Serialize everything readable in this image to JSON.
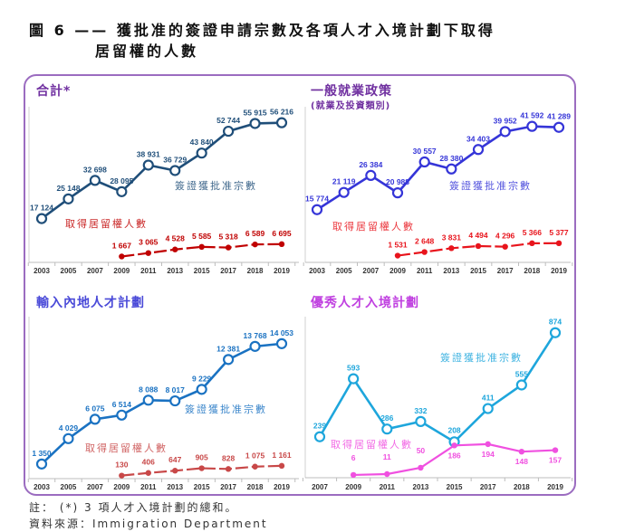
{
  "figure_title_line1": "圖 6 —— 獲批准的簽證申請宗數及各項人才入境計劃下取得",
  "figure_title_line2": "居留權的人數",
  "note": "註： (*) 3 項人才入境計劃的總和。",
  "source": "資料來源：Immigration Department",
  "chart_data": [
    {
      "type": "line",
      "title": "合計*",
      "categories": [
        "2003",
        "2005",
        "2007",
        "2009",
        "2011",
        "2013",
        "2015",
        "2017",
        "2018",
        "2019"
      ],
      "colors": {
        "title": "#7030a0",
        "approved": "#1f4e79",
        "residency": "#c00000"
      },
      "series": [
        {
          "name": "簽證獲批准宗數",
          "values": [
            17124,
            25148,
            32698,
            28095,
            38931,
            36729,
            43840,
            52744,
            55915,
            56216
          ],
          "labels": [
            "17 124",
            "25 148",
            "32 698",
            "28 095",
            "38 931",
            "36 729",
            "43 840",
            "52 744",
            "55 915",
            "56 216"
          ]
        },
        {
          "name": "取得居留權人數",
          "values": [
            null,
            null,
            null,
            1667,
            3065,
            4528,
            5585,
            5318,
            6589,
            6695
          ],
          "labels": [
            "",
            "",
            "",
            "1 667",
            "3 065",
            "4 528",
            "5 585",
            "5 318",
            "6 589",
            "6 695"
          ]
        }
      ]
    },
    {
      "type": "line",
      "title": "一般就業政策",
      "subtitle": "(就業及投資類別)",
      "categories": [
        "2003",
        "2005",
        "2007",
        "2009",
        "2011",
        "2013",
        "2015",
        "2017",
        "2018",
        "2019"
      ],
      "colors": {
        "title": "#7030a0",
        "approved": "#3535d8",
        "residency": "#e8141c"
      },
      "series": [
        {
          "name": "簽證獲批准宗數",
          "values": [
            15774,
            21119,
            26384,
            20988,
            30557,
            28380,
            34403,
            39952,
            41592,
            41289
          ],
          "labels": [
            "15 774",
            "21 119",
            "26 384",
            "20 988",
            "30 557",
            "28 380",
            "34 403",
            "39 952",
            "41 592",
            "41 289"
          ]
        },
        {
          "name": "取得居留權人數",
          "values": [
            null,
            null,
            null,
            1531,
            2648,
            3831,
            4494,
            4296,
            5366,
            5377
          ],
          "labels": [
            "",
            "",
            "",
            "1 531",
            "2 648",
            "3 831",
            "4 494",
            "4 296",
            "5 366",
            "5 377"
          ]
        }
      ]
    },
    {
      "type": "line",
      "title": "輸入內地人才計劃",
      "categories": [
        "2003",
        "2005",
        "2007",
        "2009",
        "2011",
        "2013",
        "2015",
        "2017",
        "2018",
        "2019"
      ],
      "colors": {
        "title": "#4a4ad8",
        "approved": "#1a72c2",
        "residency": "#c84848"
      },
      "series": [
        {
          "name": "簽證獲批准宗數",
          "values": [
            1350,
            4029,
            6075,
            6514,
            8088,
            8017,
            9229,
            12381,
            13768,
            14053
          ],
          "labels": [
            "1 350",
            "4 029",
            "6 075",
            "6 514",
            "8 088",
            "8 017",
            "9 229",
            "12 381",
            "13 768",
            "14 053"
          ]
        },
        {
          "name": "取得居留權人數",
          "values": [
            null,
            null,
            null,
            130,
            406,
            647,
            905,
            828,
            1075,
            1161
          ],
          "labels": [
            "",
            "",
            "",
            "130",
            "406",
            "647",
            "905",
            "828",
            "1 075",
            "1 161"
          ]
        }
      ]
    },
    {
      "type": "line",
      "title": "優秀人才入境計劃",
      "categories": [
        "2007",
        "2009",
        "2011",
        "2013",
        "2015",
        "2017",
        "2018",
        "2019"
      ],
      "colors": {
        "title": "#c040e0",
        "approved": "#1ea6dc",
        "residency": "#f050e0"
      },
      "series": [
        {
          "name": "簽證獲批准宗數",
          "values": [
            239,
            593,
            286,
            332,
            208,
            411,
            555,
            874
          ],
          "labels": [
            "239",
            "593",
            "286",
            "332",
            "208",
            "411",
            "555",
            "874"
          ]
        },
        {
          "name": "取得居留權人數",
          "values": [
            null,
            6,
            11,
            50,
            186,
            194,
            148,
            157
          ],
          "labels": [
            "",
            "6",
            "11",
            "50",
            "186",
            "194",
            "148",
            "157"
          ]
        }
      ]
    }
  ]
}
